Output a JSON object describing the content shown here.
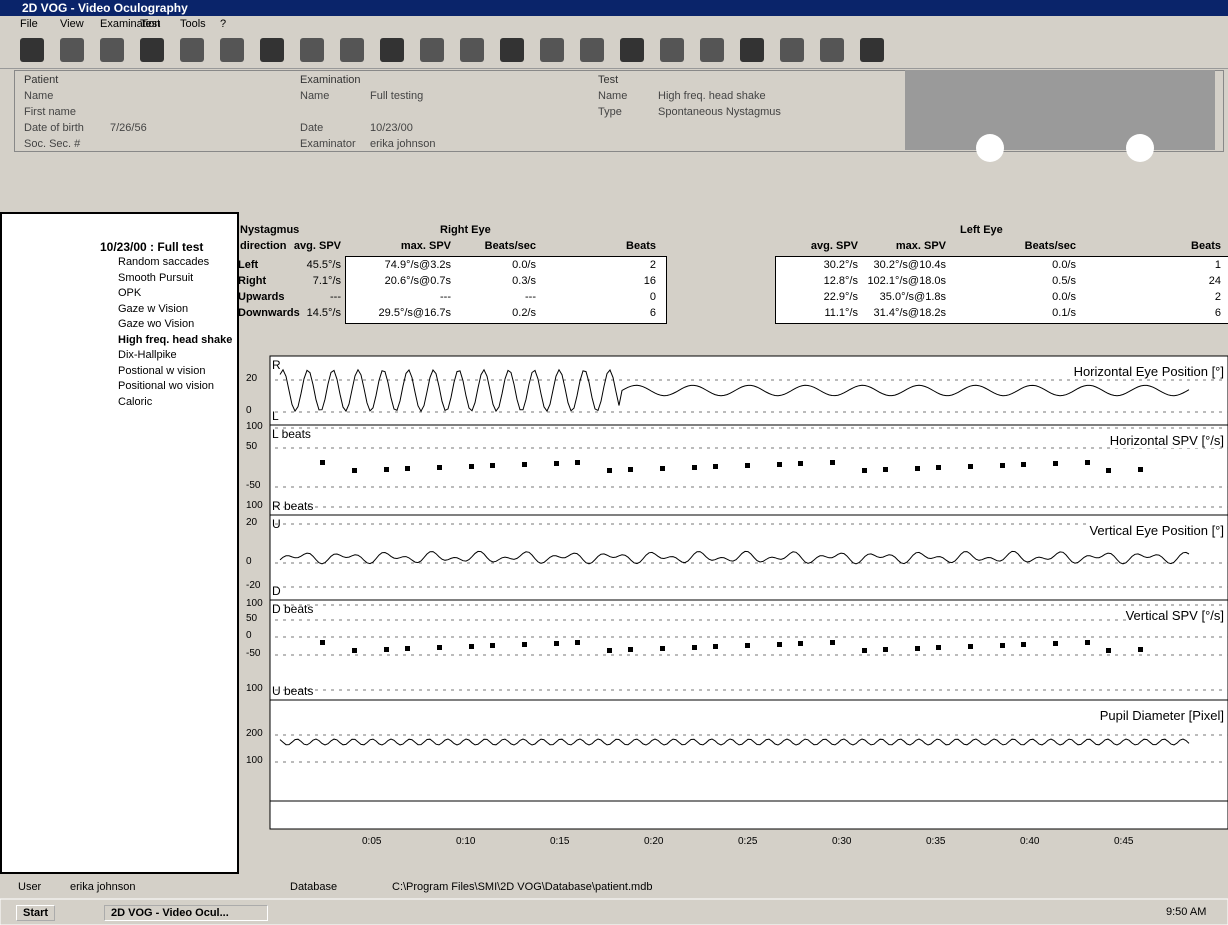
{
  "window": {
    "title": "2D VOG - Video Oculography"
  },
  "menu": [
    "File",
    "View",
    "Examination",
    "Test",
    "Tools",
    "?"
  ],
  "patient": {
    "heading": "Patient",
    "fields": [
      {
        "label": "Name"
      },
      {
        "label": "First name"
      },
      {
        "label": "Date of birth",
        "value": "7/26/56"
      },
      {
        "label": "Soc. Sec. #"
      }
    ]
  },
  "examination": {
    "heading": "Examination",
    "fields": [
      {
        "label": "Name",
        "value": "Full testing"
      },
      {
        "label": "Date",
        "value": "10/23/00"
      },
      {
        "label": "Examinator",
        "value": "erika johnson"
      }
    ]
  },
  "test": {
    "heading": "Test",
    "fields": [
      {
        "label": "Name",
        "value": "High freq. head shake"
      },
      {
        "label": "Type",
        "value": "Spontaneous Nystagmus"
      }
    ]
  },
  "tree": {
    "root": "10/23/00 : Full test",
    "items": [
      "Random saccades",
      "Smooth Pursuit",
      "OPK",
      "Gaze w Vision",
      "Gaze wo Vision",
      "High freq. head shake",
      "Dix-Hallpike",
      "Postional w vision",
      "Positional wo vision",
      "Caloric"
    ]
  },
  "nystagmus": {
    "heading": "Nystagmus",
    "direction": "direction",
    "right_eye": "Right Eye",
    "left_eye": "Left Eye",
    "columns": [
      "avg. SPV",
      "max. SPV",
      "Beats/sec",
      "Beats"
    ],
    "rows": [
      {
        "name": "Left",
        "right": [
          "45.5°/s",
          "74.9°/s@3.2s",
          "0.0/s",
          "2"
        ],
        "left": [
          "30.2°/s",
          "30.2°/s@10.4s",
          "0.0/s",
          "1"
        ]
      },
      {
        "name": "Right",
        "right": [
          "7.1°/s",
          "20.6°/s@0.7s",
          "0.3/s",
          "16"
        ],
        "left": [
          "12.8°/s",
          "102.1°/s@18.0s",
          "0.5/s",
          "24"
        ]
      },
      {
        "name": "Upwards",
        "right": [
          "---",
          "---",
          "---",
          "0"
        ],
        "left": [
          "22.9°/s",
          "35.0°/s@1.8s",
          "0.0/s",
          "2"
        ]
      },
      {
        "name": "Downwards",
        "right": [
          "14.5°/s",
          "29.5°/s@16.7s",
          "0.2/s",
          "6"
        ],
        "left": [
          "11.1°/s",
          "31.4°/s@18.2s",
          "0.1/s",
          "6"
        ]
      }
    ]
  },
  "plots": [
    {
      "title": "Horizontal Eye Position [°]",
      "ticks": [
        "20",
        "0"
      ],
      "upper": "R",
      "lower": "L"
    },
    {
      "title": "Horizontal SPV [°/s]",
      "ticks": [
        "100",
        "50",
        "-50",
        "100"
      ],
      "upper": "L beats",
      "lower": "R beats"
    },
    {
      "title": "Vertical Eye Position [°]",
      "ticks": [
        "20",
        "0",
        "-20"
      ],
      "upper": "U",
      "lower": "D"
    },
    {
      "title": "Vertical SPV [°/s]",
      "ticks": [
        "100",
        "50",
        "0",
        "-50",
        "100"
      ],
      "upper": "D beats",
      "lower": "U beats"
    },
    {
      "title": "Pupil Diameter [Pixel]",
      "ticks": [
        "200",
        "100"
      ]
    }
  ],
  "time_axis": [
    "0:05",
    "0:10",
    "0:15",
    "0:20",
    "0:25",
    "0:30",
    "0:35",
    "0:40",
    "0:45"
  ],
  "status": {
    "user_label": "User",
    "user": "erika johnson",
    "database_label": "Database",
    "database": "C:\\Program Files\\SMI\\2D VOG\\Database\\patient.mdb"
  },
  "taskbar": {
    "start": "Start",
    "task": "2D VOG - Video Ocul...",
    "clock": "9:50 AM"
  }
}
